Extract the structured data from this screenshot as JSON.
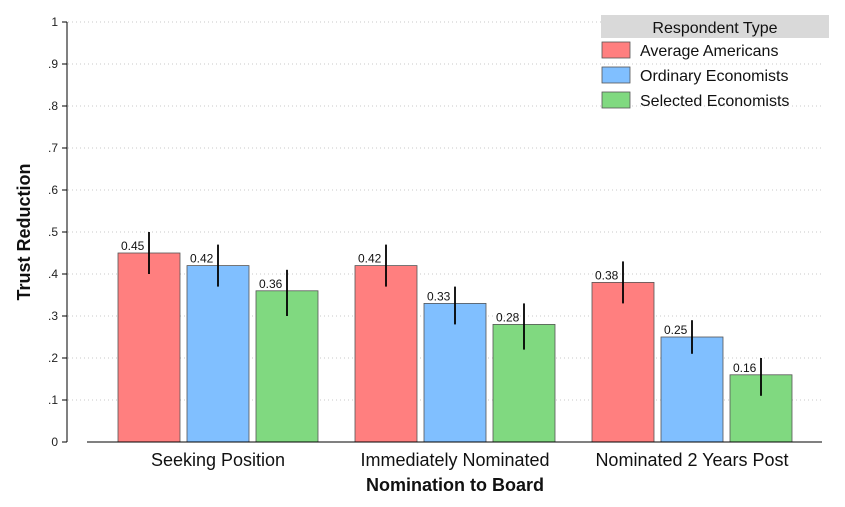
{
  "chart_data": {
    "type": "bar",
    "title": "",
    "xlabel": "Nomination to Board",
    "ylabel": "Trust Reduction",
    "ylim": [
      0,
      1
    ],
    "yticks": [
      0,
      0.1,
      0.2,
      0.3,
      0.4,
      0.5,
      0.6,
      0.7,
      0.8,
      0.9,
      1
    ],
    "ytick_labels": [
      "0",
      ".1",
      ".2",
      ".3",
      ".4",
      ".5",
      ".6",
      ".7",
      ".8",
      ".9",
      "1"
    ],
    "grid": true,
    "legend_position": "top-right",
    "legend_title": "Respondent Type",
    "categories": [
      "Seeking Position",
      "Immediately Nominated",
      "Nominated 2 Years Post"
    ],
    "series": [
      {
        "name": "Average Americans",
        "color": "#ff7f7f",
        "values": [
          0.45,
          0.42,
          0.38
        ],
        "labels": [
          "0.45",
          "0.42",
          "0.38"
        ],
        "ci_low": [
          0.4,
          0.37,
          0.33
        ],
        "ci_high": [
          0.5,
          0.47,
          0.43
        ]
      },
      {
        "name": "Ordinary Economists",
        "color": "#80bfff",
        "values": [
          0.42,
          0.33,
          0.25
        ],
        "labels": [
          "0.42",
          "0.33",
          "0.25"
        ],
        "ci_low": [
          0.37,
          0.28,
          0.21
        ],
        "ci_high": [
          0.47,
          0.37,
          0.29
        ]
      },
      {
        "name": "Selected Economists",
        "color": "#80d980",
        "values": [
          0.36,
          0.28,
          0.16
        ],
        "labels": [
          "0.36",
          "0.28",
          "0.16"
        ],
        "ci_low": [
          0.3,
          0.22,
          0.11
        ],
        "ci_high": [
          0.41,
          0.33,
          0.2
        ]
      }
    ]
  }
}
